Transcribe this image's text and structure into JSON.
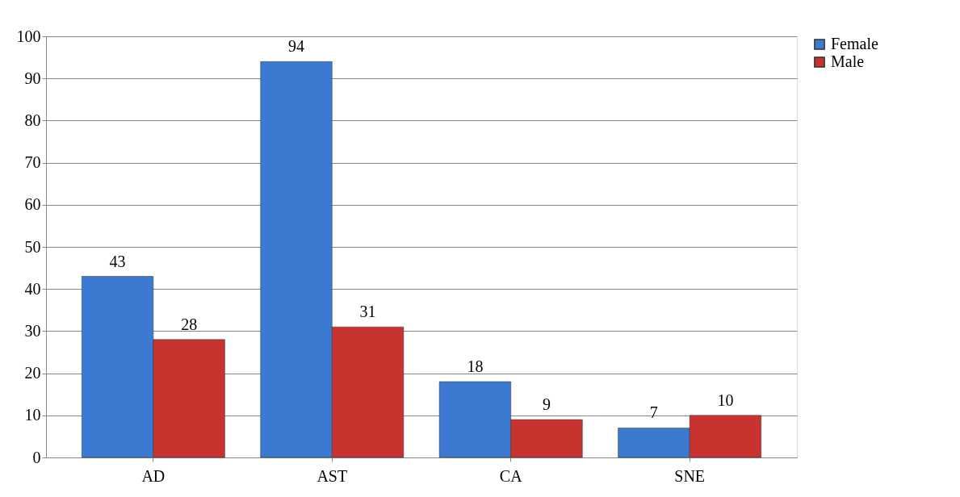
{
  "chart_data": {
    "type": "bar",
    "categories": [
      "AD",
      "AST",
      "CA",
      "SNE"
    ],
    "series": [
      {
        "name": "Female",
        "color": "#3b7ad0",
        "values": [
          43,
          94,
          18,
          7
        ]
      },
      {
        "name": "Male",
        "color": "#c8332f",
        "values": [
          28,
          31,
          9,
          10
        ]
      }
    ],
    "ylim": [
      0,
      100
    ],
    "yticks": [
      0,
      10,
      20,
      30,
      40,
      50,
      60,
      70,
      80,
      90,
      100
    ],
    "grid": "y",
    "legend": "right",
    "data_labels": true
  }
}
